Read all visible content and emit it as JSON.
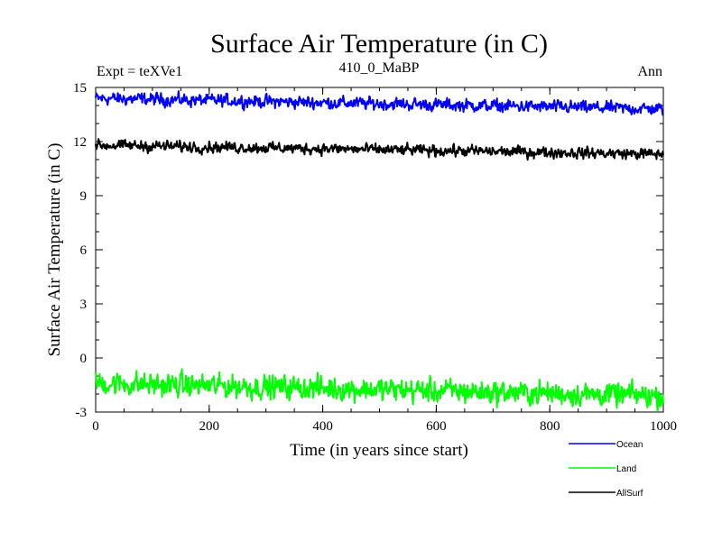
{
  "chart_data": {
    "type": "line",
    "title": "Surface Air Temperature (in C)",
    "subtitle_left": "Expt = teXVe1",
    "subtitle_center": "410_0_MaBP",
    "subtitle_right": "Ann",
    "xlabel": "Time (in years since start)",
    "ylabel": "Surface Air Temperature (in C)",
    "xlim": [
      0,
      1000
    ],
    "ylim": [
      -3,
      15
    ],
    "x_ticks": [
      0,
      200,
      400,
      600,
      800,
      1000
    ],
    "x_tick_labels": [
      "0",
      "200",
      "400",
      "600",
      "800",
      "1000"
    ],
    "y_ticks": [
      -3,
      0,
      3,
      6,
      9,
      12,
      15
    ],
    "y_tick_labels": [
      "-3",
      "0",
      "3",
      "6",
      "9",
      "12",
      "15"
    ],
    "series": [
      {
        "name": "Ocean",
        "color": "#0000ff",
        "start": 14.4,
        "end": 13.8,
        "noise": 0.16
      },
      {
        "name": "Land",
        "color": "#00ff00",
        "start": -1.4,
        "end": -2.1,
        "noise": 0.3
      },
      {
        "name": "AllSurf",
        "color": "#000000",
        "start": 11.8,
        "end": 11.3,
        "noise": 0.14
      }
    ],
    "n_points": 1000
  }
}
